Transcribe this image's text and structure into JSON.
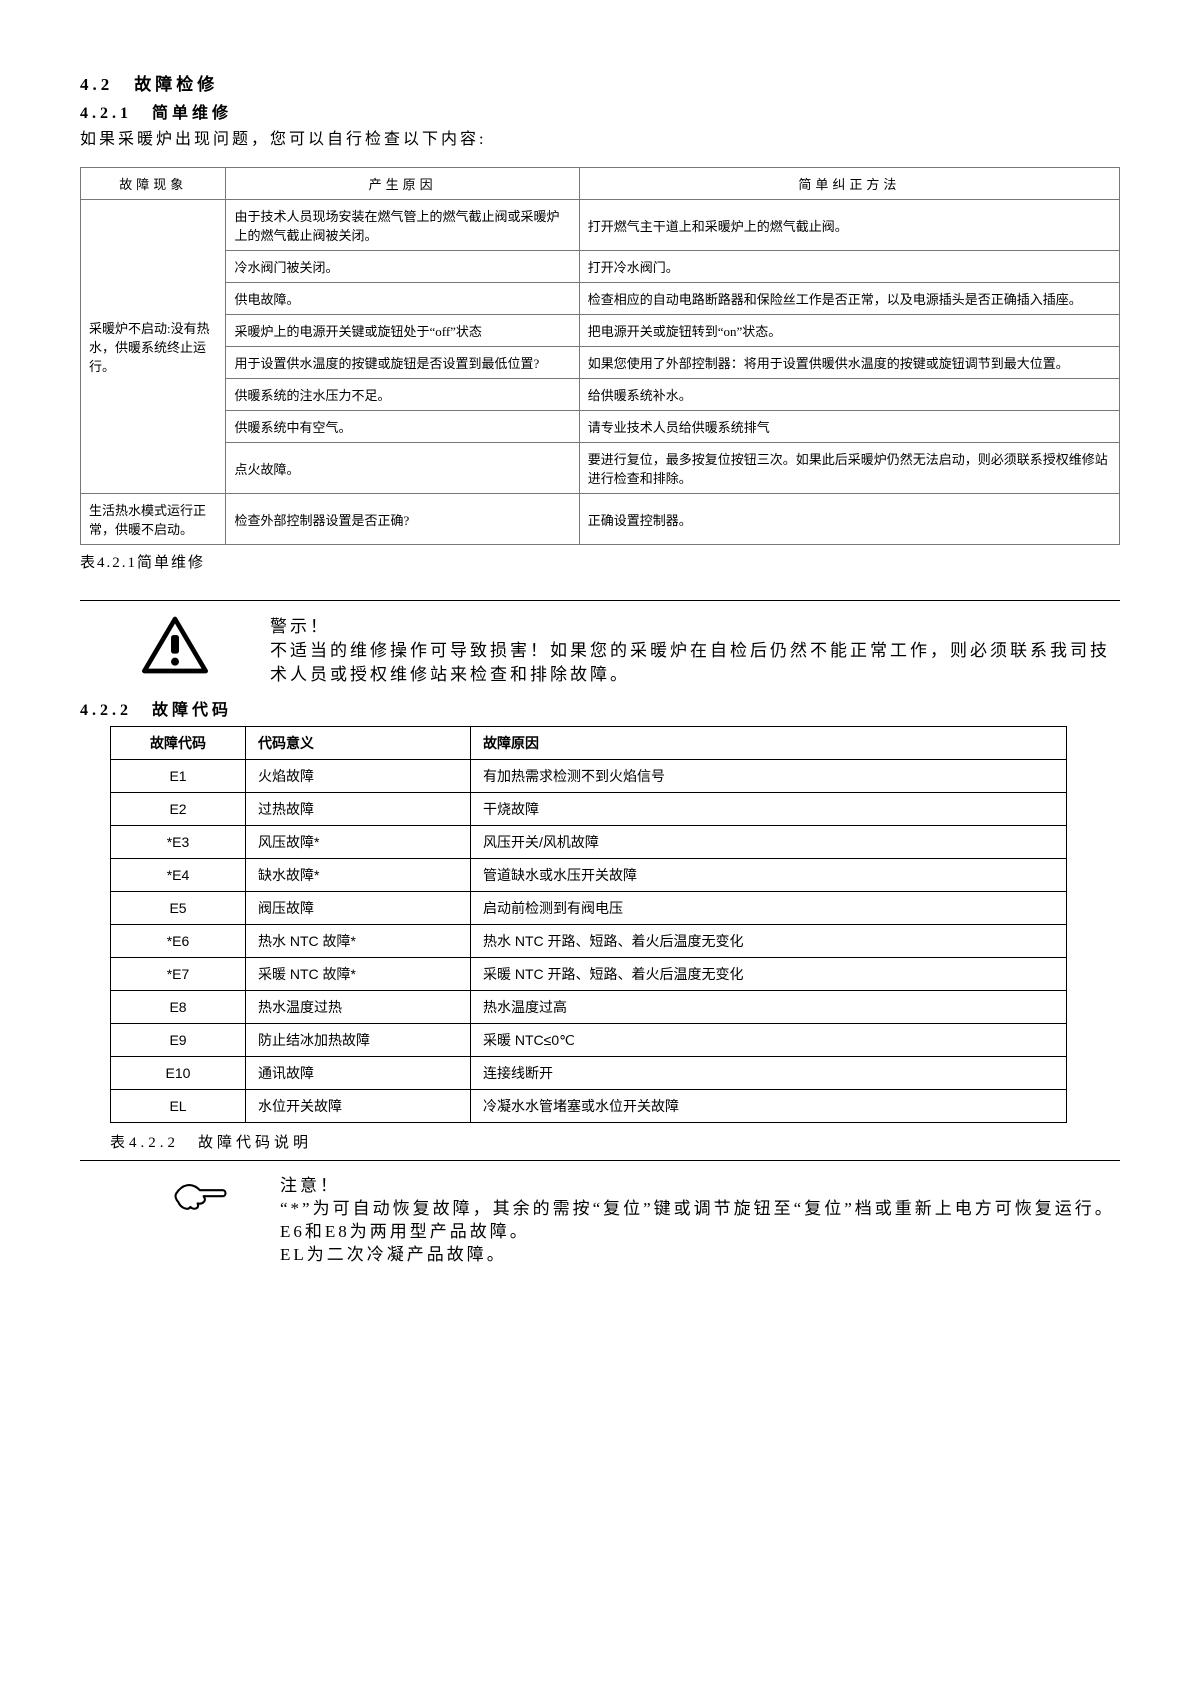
{
  "headings": {
    "h42": "4.2　故障检修",
    "h421": "4.2.1　简单维修",
    "intro": "如果采暖炉出现问题，您可以自行检查以下内容:",
    "h422": "4.2.2　故障代码"
  },
  "table1": {
    "headers": [
      "故障现象",
      "产生原因",
      "简单纠正方法"
    ],
    "group1_symptom": "采暖炉不启动:没有热水，供暖系统终止运行。",
    "group1_rows": [
      [
        "由于技术人员现场安装在燃气管上的燃气截止阀或采暖炉上的燃气截止阀被关闭。",
        "打开燃气主干道上和采暖炉上的燃气截止阀。"
      ],
      [
        "冷水阀门被关闭。",
        "打开冷水阀门。"
      ],
      [
        "供电故障。",
        "检查相应的自动电路断路器和保险丝工作是否正常，以及电源插头是否正确插入插座。"
      ],
      [
        "采暖炉上的电源开关键或旋钮处于“off”状态",
        "把电源开关或旋钮转到“on”状态。"
      ],
      [
        "用于设置供水温度的按键或旋钮是否设置到最低位置?",
        "如果您使用了外部控制器：将用于设置供暖供水温度的按键或旋钮调节到最大位置。"
      ],
      [
        "供暖系统的注水压力不足。",
        "给供暖系统补水。"
      ],
      [
        "供暖系统中有空气。",
        "请专业技术人员给供暖系统排气"
      ],
      [
        "点火故障。",
        "要进行复位，最多按复位按钮三次。如果此后采暖炉仍然无法启动，则必须联系授权维修站进行检查和排除。"
      ]
    ],
    "group2_symptom": "生活热水模式运行正常，供暖不启动。",
    "group2_row": [
      "检查外部控制器设置是否正确?",
      "正确设置控制器。"
    ],
    "caption": "表4.2.1简单维修"
  },
  "warning": {
    "title": "警示！",
    "body": "不适当的维修操作可导致损害！如果您的采暖炉在自检后仍然不能正常工作，则必须联系我司技术人员或授权维修站来检查和排除故障。"
  },
  "table2": {
    "headers": [
      "故障代码",
      "代码意义",
      "故障原因"
    ],
    "rows": [
      [
        "E1",
        "火焰故障",
        "有加热需求检测不到火焰信号"
      ],
      [
        "E2",
        "过热故障",
        "干烧故障"
      ],
      [
        "*E3",
        "风压故障*",
        "风压开关/风机故障"
      ],
      [
        "*E4",
        "缺水故障*",
        "管道缺水或水压开关故障"
      ],
      [
        "E5",
        "阀压故障",
        "启动前检测到有阀电压"
      ],
      [
        "*E6",
        "热水 NTC 故障*",
        "热水 NTC 开路、短路、着火后温度无变化"
      ],
      [
        "*E7",
        "采暖 NTC 故障*",
        "采暖 NTC 开路、短路、着火后温度无变化"
      ],
      [
        "E8",
        "热水温度过热",
        "热水温度过高"
      ],
      [
        "E9",
        "防止结冰加热故障",
        "采暖 NTC≤0℃"
      ],
      [
        "E10",
        "通讯故障",
        "连接线断开"
      ],
      [
        "EL",
        "水位开关故障",
        "冷凝水水管堵塞或水位开关故障"
      ]
    ],
    "caption": "表4.2.2　故障代码说明"
  },
  "note": {
    "title": "注意！",
    "l1": "“*”为可自动恢复故障，其余的需按“复位”键或调节旋钮至“复位”档或重新上电方可恢复运行。",
    "l2": "E6和E8为两用型产品故障。",
    "l3": "EL为二次冷凝产品故障。"
  }
}
